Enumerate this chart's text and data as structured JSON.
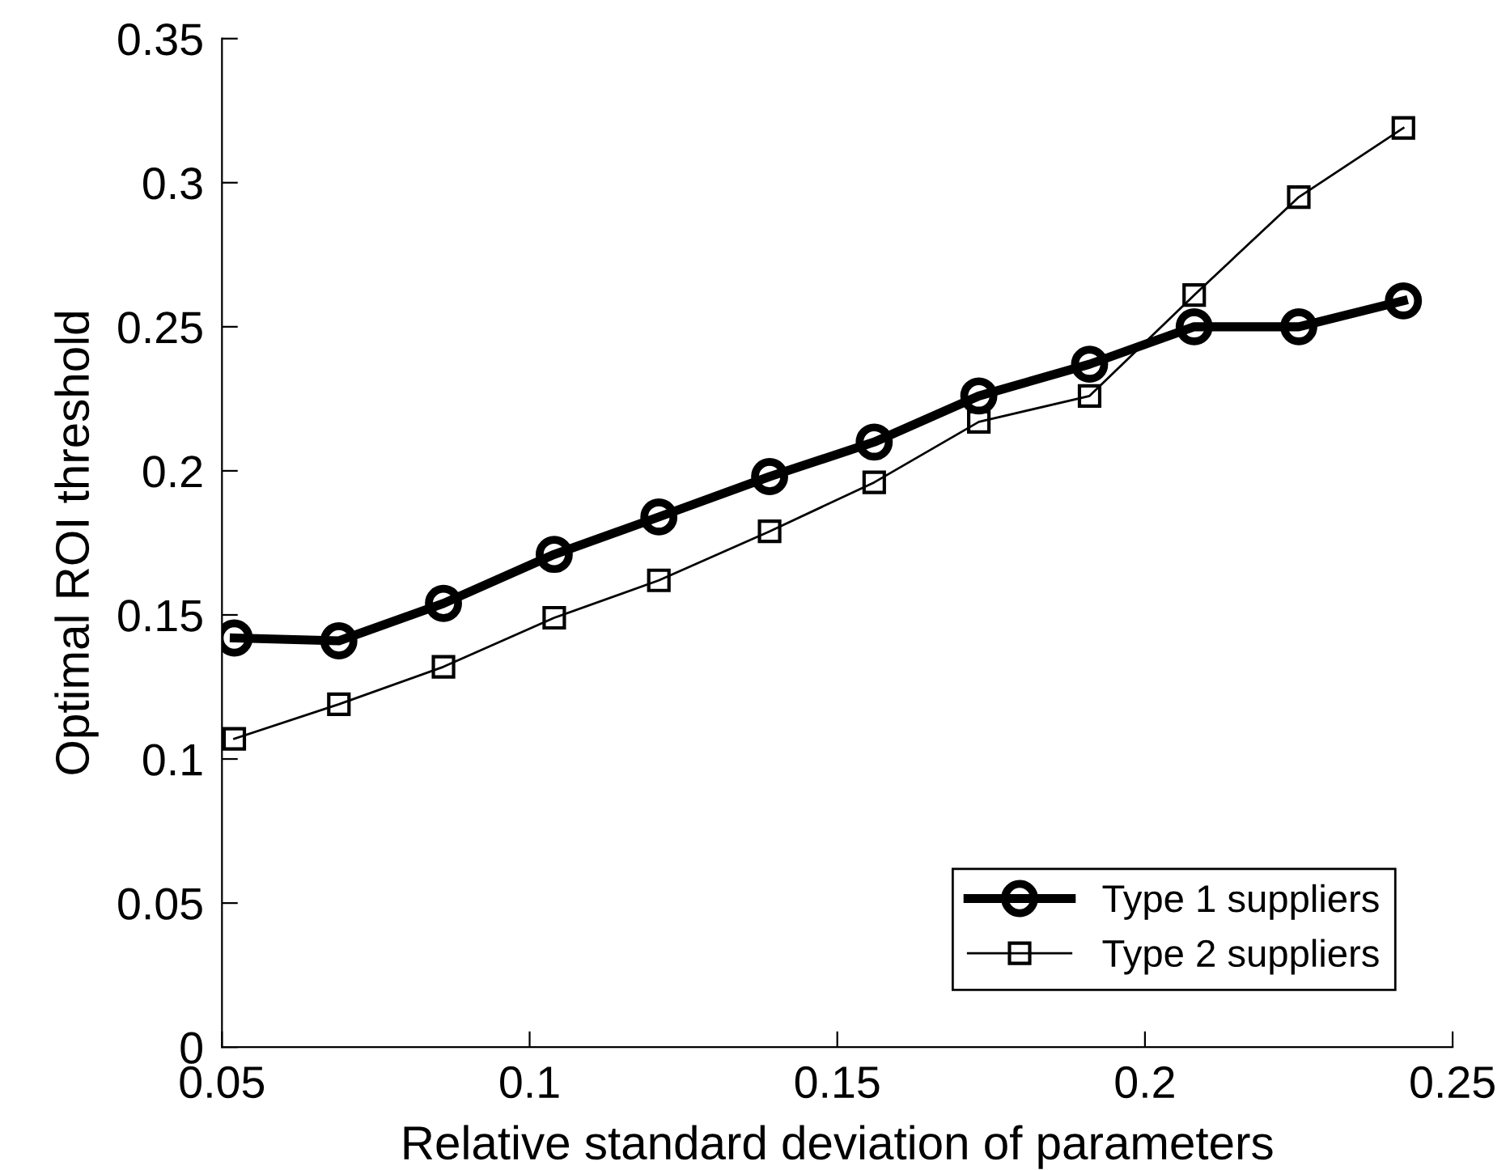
{
  "chart_data": {
    "type": "line",
    "xlabel": "Relative standard deviation of parameters",
    "ylabel": "Optimal ROI threshold",
    "x": [
      0.052,
      0.069,
      0.086,
      0.104,
      0.121,
      0.139,
      0.156,
      0.173,
      0.191,
      0.208,
      0.225,
      0.242
    ],
    "series": [
      {
        "name": "Type 1 suppliers",
        "color": "#000000",
        "marker": "circle",
        "values": [
          0.142,
          0.141,
          0.154,
          0.171,
          0.184,
          0.198,
          0.21,
          0.226,
          0.237,
          0.25,
          0.25,
          0.259
        ]
      },
      {
        "name": "Type 2 suppliers",
        "color": "#000000",
        "marker": "square",
        "values": [
          0.107,
          0.119,
          0.132,
          0.149,
          0.162,
          0.179,
          0.196,
          0.217,
          0.226,
          0.261,
          0.295,
          0.319
        ]
      }
    ],
    "xlim": [
      0.05,
      0.25
    ],
    "xticks": [
      0.05,
      0.1,
      0.15,
      0.2,
      0.25
    ],
    "ylim": [
      0,
      0.35
    ],
    "yticks": [
      0,
      0.05,
      0.1,
      0.15,
      0.2,
      0.25,
      0.3,
      0.35
    ],
    "legend": "bottom right",
    "grid": false,
    "line_style": "solid"
  }
}
